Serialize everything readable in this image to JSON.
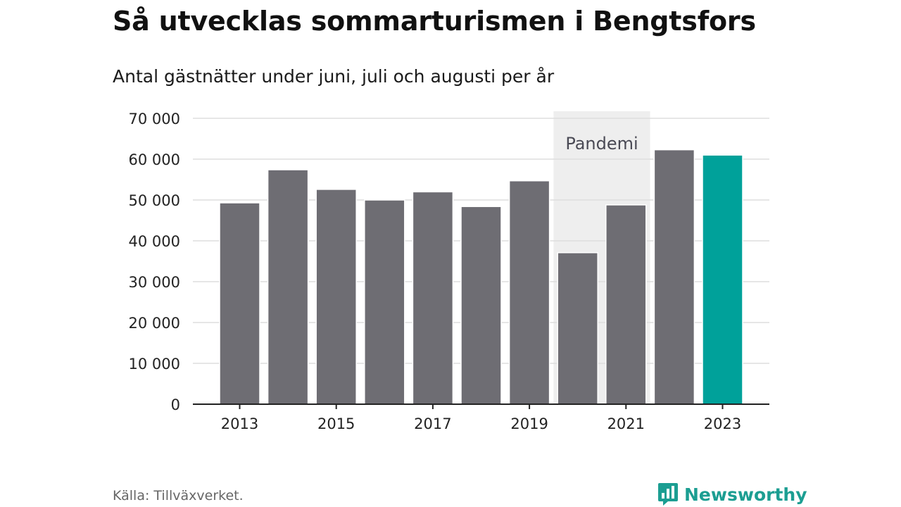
{
  "header": {
    "title": "Så utvecklas sommarturismen i Bengtsfors",
    "subtitle": "Antal gästnätter under juni, juli och augusti per år"
  },
  "footer": {
    "source": "Källa: Tillväxverket.",
    "brand": "Newsworthy",
    "brand_icon": "bar-chart-speech-bubble-icon"
  },
  "colors": {
    "bar": "#6e6d73",
    "highlight": "#00a19a",
    "shade": "#eeeeee",
    "grid": "#dddddd",
    "axis": "#222222",
    "brand": "#1c9e92"
  },
  "chart_data": {
    "type": "bar",
    "categories": [
      "2013",
      "2014",
      "2015",
      "2016",
      "2017",
      "2018",
      "2019",
      "2020",
      "2021",
      "2022",
      "2023"
    ],
    "values": [
      49300,
      57400,
      52600,
      50000,
      52000,
      48400,
      54700,
      37100,
      48800,
      62300,
      61000
    ],
    "highlight_index": 10,
    "x_tick_labels": [
      "2013",
      "2015",
      "2017",
      "2019",
      "2021",
      "2023"
    ],
    "y_ticks": [
      0,
      10000,
      20000,
      30000,
      40000,
      50000,
      60000,
      70000
    ],
    "y_tick_labels": [
      "0",
      "10 000",
      "20 000",
      "30 000",
      "40 000",
      "50 000",
      "60 000",
      "70 000"
    ],
    "ylim": [
      0,
      70000
    ],
    "grid": true,
    "annotations": [
      {
        "label": "Pandemi",
        "from": "2020",
        "to": "2021"
      }
    ],
    "xlabel": "",
    "ylabel": ""
  }
}
